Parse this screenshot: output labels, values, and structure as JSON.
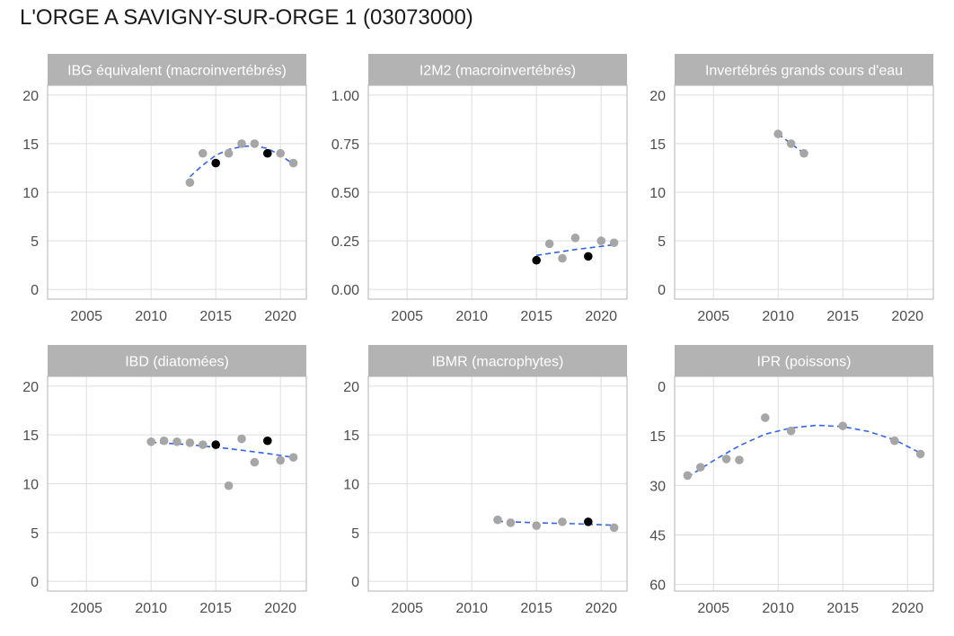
{
  "title": "L'ORGE A SAVIGNY-SUR-ORGE 1 (03073000)",
  "colors": {
    "point": "#a6a6a6",
    "highlight": "#000000",
    "trend": "#3366e6",
    "strip": "#b3b3b3",
    "grid": "#dedede",
    "border": "#b3b3b3"
  },
  "chart_data": [
    {
      "type": "scatter",
      "title": "IBG équivalent (macroinvertébrés)",
      "xlim": [
        2002,
        2022
      ],
      "ylim": [
        -1,
        21
      ],
      "x_ticks": [
        2005,
        2010,
        2015,
        2020
      ],
      "y_ticks": [
        0,
        5,
        10,
        15,
        20
      ],
      "y_tick_labels": [
        "0",
        "5",
        "10",
        "15",
        "20"
      ],
      "reversed_y": false,
      "points": [
        {
          "x": 2013,
          "y": 11,
          "highlight": false
        },
        {
          "x": 2014,
          "y": 14,
          "highlight": false
        },
        {
          "x": 2015,
          "y": 13,
          "highlight": true
        },
        {
          "x": 2016,
          "y": 14,
          "highlight": false
        },
        {
          "x": 2017,
          "y": 15,
          "highlight": false
        },
        {
          "x": 2018,
          "y": 15,
          "highlight": false
        },
        {
          "x": 2019,
          "y": 14,
          "highlight": true
        },
        {
          "x": 2020,
          "y": 14,
          "highlight": false
        },
        {
          "x": 2021,
          "y": 13,
          "highlight": false
        }
      ],
      "trend": [
        [
          2013,
          11.6
        ],
        [
          2014,
          12.8
        ],
        [
          2015,
          13.8
        ],
        [
          2016,
          14.4
        ],
        [
          2017,
          14.7
        ],
        [
          2018,
          14.8
        ],
        [
          2019,
          14.5
        ],
        [
          2020,
          13.8
        ],
        [
          2021,
          12.9
        ]
      ]
    },
    {
      "type": "scatter",
      "title": "I2M2 (macroinvertébrés)",
      "xlim": [
        2002,
        2022
      ],
      "ylim": [
        -0.05,
        1.05
      ],
      "x_ticks": [
        2005,
        2010,
        2015,
        2020
      ],
      "y_ticks": [
        0,
        0.25,
        0.5,
        0.75,
        1.0
      ],
      "y_tick_labels": [
        "0.00",
        "0.25",
        "0.50",
        "0.75",
        "1.00"
      ],
      "reversed_y": false,
      "points": [
        {
          "x": 2015,
          "y": 0.15,
          "highlight": true
        },
        {
          "x": 2016,
          "y": 0.235,
          "highlight": false
        },
        {
          "x": 2017,
          "y": 0.16,
          "highlight": false
        },
        {
          "x": 2018,
          "y": 0.265,
          "highlight": false
        },
        {
          "x": 2019,
          "y": 0.17,
          "highlight": true
        },
        {
          "x": 2020,
          "y": 0.25,
          "highlight": false
        },
        {
          "x": 2021,
          "y": 0.24,
          "highlight": false
        }
      ],
      "trend": [
        [
          2015,
          0.175
        ],
        [
          2018,
          0.205
        ],
        [
          2021,
          0.23
        ]
      ]
    },
    {
      "type": "scatter",
      "title": "Invertébrés grands cours d'eau",
      "xlim": [
        2002,
        2022
      ],
      "ylim": [
        -1,
        21
      ],
      "x_ticks": [
        2005,
        2010,
        2015,
        2020
      ],
      "y_ticks": [
        0,
        5,
        10,
        15,
        20
      ],
      "y_tick_labels": [
        "0",
        "5",
        "10",
        "15",
        "20"
      ],
      "reversed_y": false,
      "points": [
        {
          "x": 2010,
          "y": 16,
          "highlight": false
        },
        {
          "x": 2011,
          "y": 15,
          "highlight": false
        },
        {
          "x": 2012,
          "y": 14,
          "highlight": false
        }
      ],
      "trend": [
        [
          2010,
          16
        ],
        [
          2011,
          15
        ],
        [
          2012,
          14
        ]
      ]
    },
    {
      "type": "scatter",
      "title": "IBD (diatomées)",
      "xlim": [
        2002,
        2022
      ],
      "ylim": [
        -1,
        21
      ],
      "x_ticks": [
        2005,
        2010,
        2015,
        2020
      ],
      "y_ticks": [
        0,
        5,
        10,
        15,
        20
      ],
      "y_tick_labels": [
        "0",
        "5",
        "10",
        "15",
        "20"
      ],
      "reversed_y": false,
      "points": [
        {
          "x": 2010,
          "y": 14.3,
          "highlight": false
        },
        {
          "x": 2011,
          "y": 14.4,
          "highlight": false
        },
        {
          "x": 2012,
          "y": 14.3,
          "highlight": false
        },
        {
          "x": 2013,
          "y": 14.2,
          "highlight": false
        },
        {
          "x": 2014,
          "y": 14.0,
          "highlight": false
        },
        {
          "x": 2015,
          "y": 14.0,
          "highlight": true
        },
        {
          "x": 2016,
          "y": 9.8,
          "highlight": false
        },
        {
          "x": 2017,
          "y": 14.6,
          "highlight": false
        },
        {
          "x": 2018,
          "y": 12.2,
          "highlight": false
        },
        {
          "x": 2019,
          "y": 14.4,
          "highlight": true
        },
        {
          "x": 2020,
          "y": 12.4,
          "highlight": false
        },
        {
          "x": 2021,
          "y": 12.7,
          "highlight": false
        }
      ],
      "trend": [
        [
          2010,
          14.25
        ],
        [
          2013,
          14.0
        ],
        [
          2016,
          13.6
        ],
        [
          2019,
          13.1
        ],
        [
          2021,
          12.7
        ]
      ]
    },
    {
      "type": "scatter",
      "title": "IBMR (macrophytes)",
      "xlim": [
        2002,
        2022
      ],
      "ylim": [
        -1,
        21
      ],
      "x_ticks": [
        2005,
        2010,
        2015,
        2020
      ],
      "y_ticks": [
        0,
        5,
        10,
        15,
        20
      ],
      "y_tick_labels": [
        "0",
        "5",
        "10",
        "15",
        "20"
      ],
      "reversed_y": false,
      "points": [
        {
          "x": 2012,
          "y": 6.3,
          "highlight": false
        },
        {
          "x": 2013,
          "y": 6.0,
          "highlight": false
        },
        {
          "x": 2015,
          "y": 5.7,
          "highlight": false
        },
        {
          "x": 2017,
          "y": 6.1,
          "highlight": false
        },
        {
          "x": 2019,
          "y": 6.1,
          "highlight": true
        },
        {
          "x": 2021,
          "y": 5.5,
          "highlight": false
        }
      ],
      "trend": [
        [
          2012,
          6.15
        ],
        [
          2015,
          6.0
        ],
        [
          2018,
          5.9
        ],
        [
          2021,
          5.75
        ]
      ]
    },
    {
      "type": "scatter",
      "title": "IPR (poissons)",
      "xlim": [
        2002,
        2022
      ],
      "ylim": [
        62,
        -3
      ],
      "x_ticks": [
        2005,
        2010,
        2015,
        2020
      ],
      "y_ticks": [
        0,
        15,
        30,
        45,
        60
      ],
      "y_tick_labels": [
        "0",
        "15",
        "30",
        "45",
        "60"
      ],
      "reversed_y": true,
      "points": [
        {
          "x": 2003,
          "y": 27,
          "highlight": false
        },
        {
          "x": 2004,
          "y": 24.5,
          "highlight": false
        },
        {
          "x": 2006,
          "y": 22,
          "highlight": false
        },
        {
          "x": 2007,
          "y": 22.3,
          "highlight": false
        },
        {
          "x": 2009,
          "y": 9.5,
          "highlight": false
        },
        {
          "x": 2011,
          "y": 13.5,
          "highlight": false
        },
        {
          "x": 2015,
          "y": 12,
          "highlight": false
        },
        {
          "x": 2019,
          "y": 16.5,
          "highlight": false
        },
        {
          "x": 2021,
          "y": 20.5,
          "highlight": false
        }
      ],
      "trend": [
        [
          2003,
          27.5
        ],
        [
          2005,
          22.5
        ],
        [
          2007,
          18.0
        ],
        [
          2009,
          14.5
        ],
        [
          2011,
          12.6
        ],
        [
          2013,
          11.8
        ],
        [
          2015,
          12.2
        ],
        [
          2017,
          13.7
        ],
        [
          2019,
          16.2
        ],
        [
          2021,
          20.2
        ]
      ]
    }
  ]
}
